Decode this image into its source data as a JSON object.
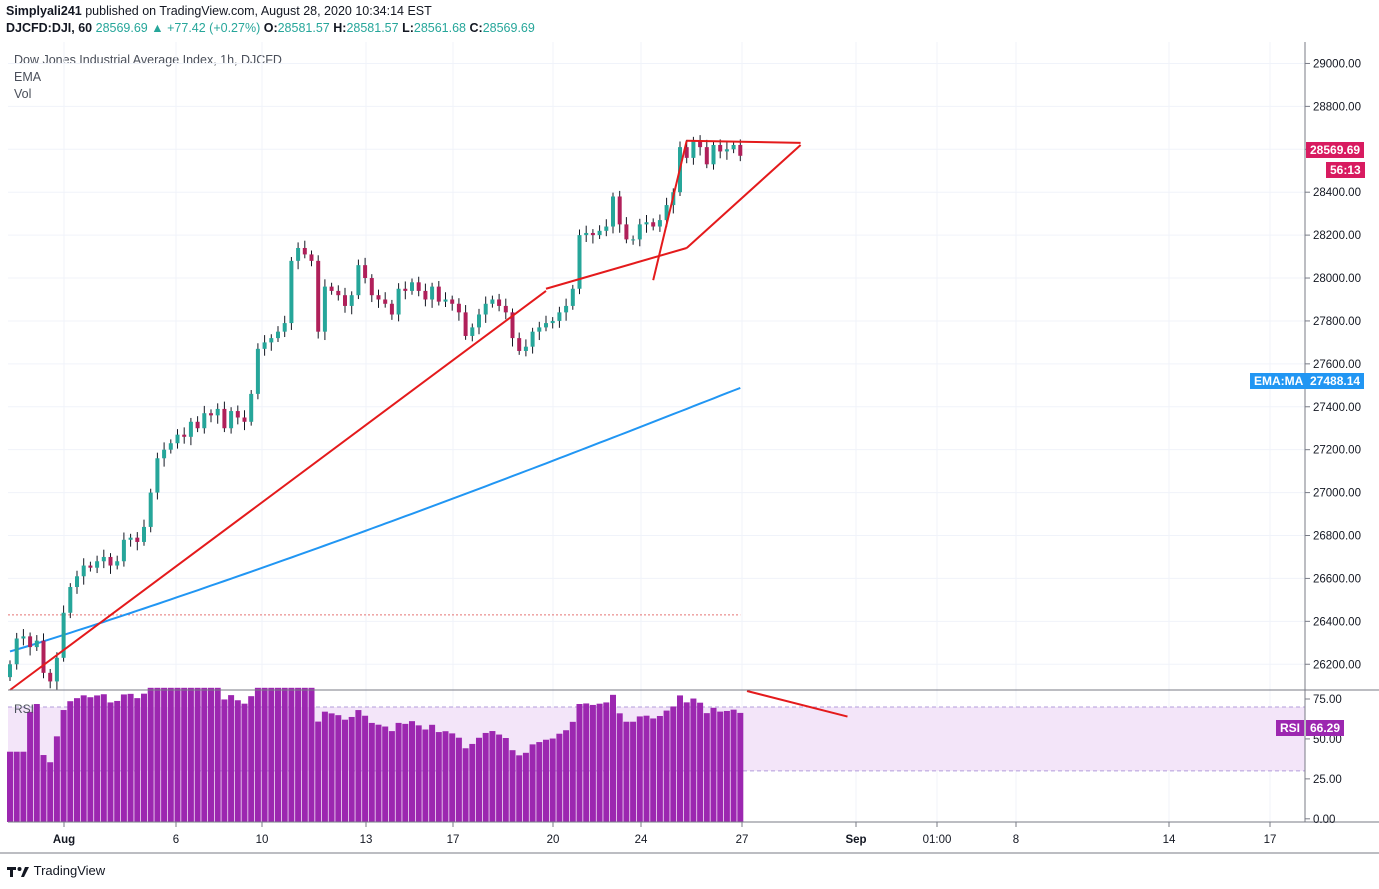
{
  "header": {
    "publisher": "Simplyali241",
    "published_text": "published on TradingView.com, August 28, 2020 10:34:14 EST"
  },
  "ohlc": {
    "symbol": "DJCFD:DJI, 60",
    "last": "28569.69",
    "change": "+77.42 (+0.27%)",
    "o_label": "O:",
    "o": "28581.57",
    "h_label": "H:",
    "h": "28581.57",
    "l_label": "L:",
    "l": "28561.68",
    "c_label": "C:",
    "c": "28569.69"
  },
  "legend": {
    "title": "Dow Jones Industrial Average Index, 1h, DJCFD",
    "ema": "EMA",
    "vol": "Vol",
    "rsi": "RSI"
  },
  "tags": {
    "price": "28569.69",
    "countdown": "56:13",
    "ema_name": "EMA:MA",
    "ema_value": "27488.14",
    "rsi_name": "RSI",
    "rsi_value": "66.29"
  },
  "footer": {
    "brand": "TradingView"
  },
  "colors": {
    "up": "#26a69a",
    "down": "#b0205a",
    "ema": "#2196f3",
    "trend": "#e41a1c",
    "rsi": "#9c27b0",
    "rsi_band": "#f3e5f9",
    "price_tag": "#d81b60",
    "ema_tag": "#2196f3"
  },
  "chart_data": [
    {
      "type": "candlestick",
      "price_axis": {
        "min": 26080,
        "max": 29100,
        "ticks": [
          "29000.00",
          "28800.00",
          "28600.00",
          "28400.00",
          "28200.00",
          "28000.00",
          "27800.00",
          "27600.00",
          "27400.00",
          "27200.00",
          "27000.00",
          "26800.00",
          "26600.00",
          "26400.00",
          "26200.00"
        ]
      },
      "time_axis": {
        "labels": [
          "Aug",
          "6",
          "10",
          "13",
          "17",
          "20",
          "24",
          "27",
          "Sep",
          "01:00",
          "8",
          "14",
          "17"
        ]
      },
      "closes": [
        26200,
        26320,
        26330,
        26280,
        26310,
        26160,
        26120,
        26230,
        26440,
        26560,
        26610,
        26660,
        26650,
        26680,
        26700,
        26660,
        26680,
        26780,
        26790,
        26770,
        26840,
        27000,
        27160,
        27200,
        27230,
        27270,
        27260,
        27330,
        27300,
        27370,
        27360,
        27390,
        27300,
        27380,
        27350,
        27330,
        27460,
        27670,
        27700,
        27720,
        27750,
        27790,
        28080,
        28140,
        28110,
        28080,
        27750,
        27960,
        27940,
        27920,
        27870,
        27920,
        28060,
        28000,
        27920,
        27900,
        27880,
        27830,
        27950,
        27940,
        27980,
        27940,
        27900,
        27960,
        27890,
        27900,
        27880,
        27840,
        27730,
        27770,
        27830,
        27880,
        27900,
        27870,
        27840,
        27720,
        27660,
        27680,
        27750,
        27770,
        27790,
        27800,
        27840,
        27870,
        27950,
        28200,
        28210,
        28200,
        28220,
        28240,
        28380,
        28250,
        28180,
        28180,
        28250,
        28260,
        28240,
        28270,
        28340,
        28400,
        28610,
        28560,
        28640,
        28610,
        28530,
        28620,
        28590,
        28600,
        28620,
        28569.69
      ],
      "ema_values": {
        "start": 26260,
        "end": 27488.14
      },
      "reference_line": 26430,
      "trendlines": [
        {
          "from": [
            0,
            26080
          ],
          "to": [
            80,
            27940
          ]
        },
        {
          "from": [
            80,
            27950
          ],
          "to": [
            101,
            28140
          ]
        },
        {
          "from": [
            101,
            28140
          ],
          "to": [
            118,
            28620
          ]
        },
        {
          "from": [
            101,
            28640
          ],
          "to": [
            118,
            28630
          ]
        },
        {
          "from": [
            96,
            27990
          ],
          "to": [
            101,
            28640
          ]
        }
      ],
      "trendline_rsi": {
        "from": [
          110,
          80
        ],
        "to": [
          125,
          64
        ]
      }
    },
    {
      "type": "bar",
      "name": "RSI",
      "axis": {
        "min": -2,
        "max": 80,
        "ticks": [
          "75.00",
          "50.00",
          "25.00",
          "0.00"
        ]
      },
      "band": [
        30,
        70
      ],
      "values_from": "closes"
    }
  ]
}
